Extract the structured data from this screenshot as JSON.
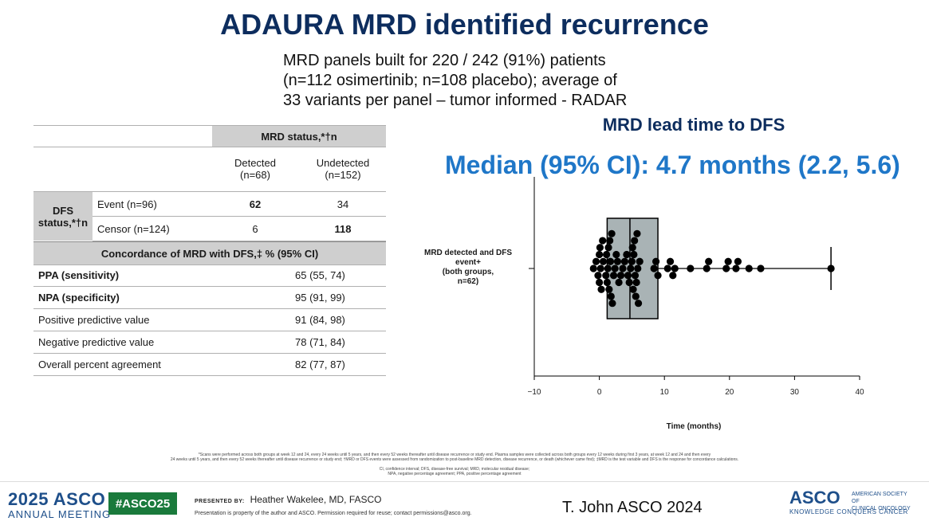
{
  "title": "ADAURA MRD identified recurrence",
  "subtitle_lines": [
    "MRD panels built for 220 / 242 (91%) patients",
    "(n=112 osimertinib; n=108 placebo); average of",
    "33 variants per panel – tumor informed - RADAR"
  ],
  "lead_time_title": "MRD lead time to DFS",
  "median_text": "Median (95% CI): 4.7 months (2.2, 5.6)",
  "table": {
    "mrd_status_header": "MRD status,*†n",
    "detected_label": "Detected",
    "detected_n": "(n=68)",
    "undetected_label": "Undetected",
    "undetected_n": "(n=152)",
    "dfs_status_label_1": "DFS",
    "dfs_status_label_2": "status,*†n",
    "event_label": "Event (n=96)",
    "event_detected": "62",
    "event_undetected": "34",
    "censor_label": "Censor (n=124)",
    "censor_detected": "6",
    "censor_undetected": "118",
    "concordance_header": "Concordance of MRD with DFS,‡ % (95% CI)",
    "rows": [
      {
        "label": "PPA (sensitivity)",
        "value": "65 (55, 74)",
        "bold": true
      },
      {
        "label": "NPA (specificity)",
        "value": "95 (91, 99)",
        "bold": true
      },
      {
        "label": "Positive predictive value",
        "value": "91 (84, 98)",
        "bold": false
      },
      {
        "label": "Negative predictive value",
        "value": "78 (71, 84)",
        "bold": false
      },
      {
        "label": "Overall percent agreement",
        "value": "82 (77, 87)",
        "bold": false
      }
    ]
  },
  "chart_data": {
    "type": "scatter",
    "subtype": "box-and-swarm",
    "title": "",
    "xlabel": "Time (months)",
    "ylabel": "",
    "category_label_lines": [
      "MRD detected and DFS",
      "event+",
      "(both groups,",
      "n=62)"
    ],
    "xlim": [
      -10,
      40
    ],
    "xticks": [
      -10,
      0,
      10,
      20,
      30,
      40
    ],
    "x_tick_labels": [
      "−10",
      "0",
      "10",
      "20",
      "30",
      "40"
    ],
    "box": {
      "q1": 1.2,
      "median": 4.7,
      "q3": 9.0,
      "whisker_low": 0,
      "whisker_high": 35.6
    },
    "box_color": "#a9b3b5",
    "point_color": "#000000",
    "points": [
      -0.9,
      -0.5,
      -0.2,
      0.0,
      0.0,
      0.1,
      0.2,
      0.3,
      0.5,
      0.6,
      1.0,
      1.1,
      1.2,
      1.3,
      1.4,
      1.5,
      1.6,
      1.7,
      1.8,
      1.9,
      2.0,
      2.2,
      2.4,
      2.6,
      2.8,
      3.0,
      3.3,
      3.6,
      3.9,
      4.2,
      4.4,
      4.6,
      4.8,
      5.0,
      5.1,
      5.2,
      5.3,
      5.4,
      5.5,
      5.6,
      5.7,
      5.8,
      5.9,
      6.0,
      6.2,
      8.4,
      8.7,
      9.0,
      10.5,
      10.9,
      11.3,
      11.6,
      14.0,
      16.5,
      16.8,
      19.5,
      19.8,
      21.0,
      21.3,
      23.0,
      24.8,
      35.6
    ]
  },
  "footer": {
    "footnote_lines": [
      "*Scans were performed across both groups at week 12 and 24, every 24 weeks until 5 years, and then every 52 weeks thereafter until disease recurrence or study end. Plasma samples were collected across both groups every 12 weeks during first 3 years, at week 12 and 24 and then every",
      "24 weeks until 5 years, and then every 52 weeks thereafter until disease recurrence or study end; †MRD or DFS events were assessed from randomization to post-baseline MRD detection, disease recurrence, or death (whichever came first); ‡MRD is the test variable and DFS is the response for concordance calculations.",
      "CI, confidence interval; DFS, disease-free survival; MRD, molecular residual disease;",
      "NPA, negative percentage agreement; PPA, positive percentage agreement"
    ],
    "meeting_year_name": "2025 ASCO",
    "meeting_sub": "ANNUAL MEETING",
    "hashtag": "#ASCO25",
    "presented_by_label": "PRESENTED BY:",
    "presenter": "Heather Wakelee, MD, FASCO",
    "property_notice": "Presentation is property of the author and ASCO. Permission required for reuse; contact permissions@asco.org.",
    "citation": "T. John ASCO 2024",
    "asco_logo": "ASCO",
    "asco_side_1": "AMERICAN SOCIETY OF",
    "asco_side_2": "CLINICAL ONCOLOGY",
    "asco_tagline": "KNOWLEDGE CONQUERS CANCER"
  }
}
